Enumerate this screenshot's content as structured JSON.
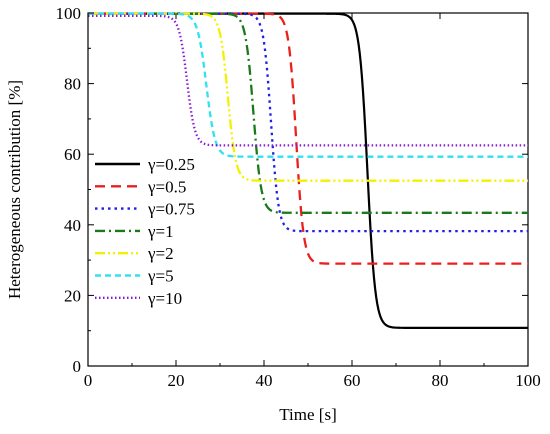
{
  "chart_data": {
    "type": "line",
    "title": "",
    "xlabel": "Time [s]",
    "ylabel": "Heterogeneous contribution [%]",
    "xlim": [
      0,
      100
    ],
    "ylim": [
      0,
      100
    ],
    "xticks": [
      "0",
      "20",
      "40",
      "60",
      "80",
      "100"
    ],
    "yticks": [
      "0",
      "20",
      "40",
      "60",
      "80",
      "100"
    ],
    "grid": false,
    "legend_position": "left",
    "series": [
      {
        "name": "γ=0.25",
        "color": "#000000",
        "dash": "solid",
        "start": 99.8,
        "end": 10.8,
        "t_mid": 63.5,
        "width": 0.9,
        "t_begin": 0.0
      },
      {
        "name": "γ=0.5",
        "color": "#e8211c",
        "dash": "dashed",
        "start": 99.8,
        "end": 29.0,
        "t_mid": 47.3,
        "width": 0.85,
        "t_begin": 0.0
      },
      {
        "name": "γ=0.75",
        "color": "#1f1fe6",
        "dash": "dotted",
        "start": 99.8,
        "end": 38.2,
        "t_mid": 41.6,
        "width": 0.85,
        "t_begin": 0.0
      },
      {
        "name": "γ=1",
        "color": "#1a7a1a",
        "dash": "dashdot",
        "start": 99.8,
        "end": 43.4,
        "t_mid": 37.6,
        "width": 0.9,
        "t_begin": 0.0
      },
      {
        "name": "γ=2",
        "color": "#f2f200",
        "dash": "dashdotdot",
        "start": 99.8,
        "end": 52.5,
        "t_mid": 31.8,
        "width": 0.9,
        "t_begin": 0.0
      },
      {
        "name": "γ=5",
        "color": "#33e0f2",
        "dash": "shortdash",
        "start": 99.8,
        "end": 59.3,
        "t_mid": 26.9,
        "width": 1.0,
        "t_begin": 0.0
      },
      {
        "name": "γ=10",
        "color": "#8a1ad6",
        "dash": "dot",
        "start": 99.2,
        "end": 62.5,
        "t_mid": 22.5,
        "width": 0.9,
        "t_begin": 0.0
      }
    ]
  }
}
